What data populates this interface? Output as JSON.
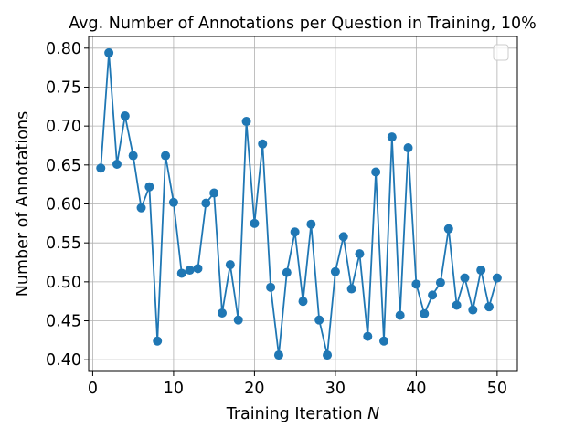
{
  "chart_data": {
    "type": "line",
    "title": "Avg. Number of Annotations per Question in Training, 10%",
    "xlabel_prefix": "Training Iteration ",
    "xlabel_var": "N",
    "ylabel": "Number of Annotations",
    "xlim": [
      -0.5,
      52.5
    ],
    "ylim": [
      0.385,
      0.815
    ],
    "xticks": [
      0,
      10,
      20,
      30,
      40,
      50
    ],
    "xtick_labels": [
      "0",
      "10",
      "20",
      "30",
      "40",
      "50"
    ],
    "yticks": [
      0.4,
      0.45,
      0.5,
      0.55,
      0.6,
      0.65,
      0.7,
      0.75,
      0.8
    ],
    "ytick_labels": [
      "0.40",
      "0.45",
      "0.50",
      "0.55",
      "0.60",
      "0.65",
      "0.70",
      "0.75",
      "0.80"
    ],
    "grid": true,
    "legend_placement": "top-right",
    "color": "#1f77b4",
    "series": [
      {
        "x": [
          1,
          2,
          3,
          4,
          5,
          6,
          7,
          8,
          9,
          10,
          11,
          12,
          13,
          14,
          15,
          16,
          17,
          18,
          19,
          20,
          21,
          22,
          23,
          24,
          25,
          26,
          27,
          28,
          29,
          30,
          31,
          32,
          33,
          34,
          35,
          36,
          37,
          38,
          39,
          40,
          41,
          42,
          43,
          44,
          45,
          46,
          47,
          48,
          49,
          50
        ],
        "values": [
          0.646,
          0.794,
          0.651,
          0.713,
          0.662,
          0.595,
          0.622,
          0.424,
          0.662,
          0.602,
          0.511,
          0.515,
          0.517,
          0.601,
          0.614,
          0.46,
          0.522,
          0.451,
          0.706,
          0.575,
          0.677,
          0.493,
          0.406,
          0.512,
          0.564,
          0.475,
          0.574,
          0.451,
          0.406,
          0.513,
          0.558,
          0.491,
          0.536,
          0.43,
          0.641,
          0.424,
          0.686,
          0.457,
          0.672,
          0.497,
          0.459,
          0.483,
          0.499,
          0.568,
          0.47,
          0.505,
          0.464,
          0.515,
          0.468,
          0.505
        ]
      }
    ]
  }
}
